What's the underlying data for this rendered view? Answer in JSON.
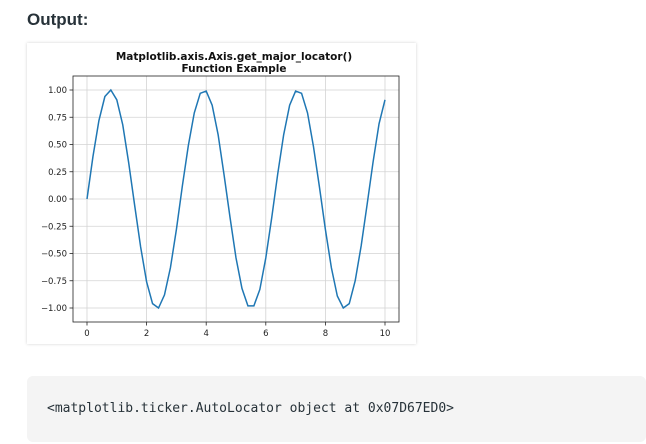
{
  "page": {
    "heading": "Output:",
    "output_text": "<matplotlib.ticker.AutoLocator object at 0x07D67ED0>"
  },
  "colors": {
    "line": "#1f77b4",
    "grid": "#d3d3d3",
    "text": "#273239",
    "code_bg": "#f4f4f4"
  },
  "chart_data": {
    "type": "line",
    "title_line1": "Matplotlib.axis.Axis.get_major_locator()",
    "title_line2": "Function Example",
    "xlabel": "",
    "ylabel": "",
    "xlim": [
      0,
      10
    ],
    "ylim": [
      -1.0,
      1.0
    ],
    "xticks": [
      0,
      2,
      4,
      6,
      8,
      10
    ],
    "xtick_labels": [
      "0",
      "2",
      "4",
      "6",
      "8",
      "10"
    ],
    "yticks": [
      1.0,
      0.75,
      0.5,
      0.25,
      0.0,
      -0.25,
      -0.5,
      -0.75,
      -1.0
    ],
    "ytick_labels": [
      "1.00",
      "0.75",
      "0.50",
      "0.25",
      "0.00",
      "−0.25",
      "−0.50",
      "−0.75",
      "−1.00"
    ],
    "grid": true,
    "series": [
      {
        "x": [
          0,
          0.2,
          0.4,
          0.6,
          0.8,
          1.0,
          1.2,
          1.4,
          1.6,
          1.8,
          2.0,
          2.2,
          2.4,
          2.6,
          2.8,
          3.0,
          3.2,
          3.4,
          3.6,
          3.8,
          4.0,
          4.2,
          4.4,
          4.6,
          4.8,
          5.0,
          5.2,
          5.4,
          5.6,
          5.8,
          6.0,
          6.2,
          6.4,
          6.6,
          6.8,
          7.0,
          7.2,
          7.4,
          7.6,
          7.8,
          8.0,
          8.2,
          8.4,
          8.6,
          8.8,
          9.0,
          9.2,
          9.4,
          9.6,
          9.8,
          10.0
        ],
        "y": [
          0.0,
          0.39,
          0.72,
          0.94,
          1.0,
          0.91,
          0.68,
          0.33,
          -0.06,
          -0.44,
          -0.76,
          -0.96,
          -1.0,
          -0.88,
          -0.63,
          -0.28,
          0.12,
          0.49,
          0.79,
          0.97,
          0.99,
          0.86,
          0.59,
          0.22,
          -0.17,
          -0.54,
          -0.82,
          -0.98,
          -0.98,
          -0.83,
          -0.54,
          -0.17,
          0.23,
          0.59,
          0.86,
          0.99,
          0.97,
          0.79,
          0.48,
          0.11,
          -0.28,
          -0.63,
          -0.89,
          -1.0,
          -0.96,
          -0.75,
          -0.43,
          -0.05,
          0.34,
          0.69,
          0.91
        ]
      }
    ]
  }
}
